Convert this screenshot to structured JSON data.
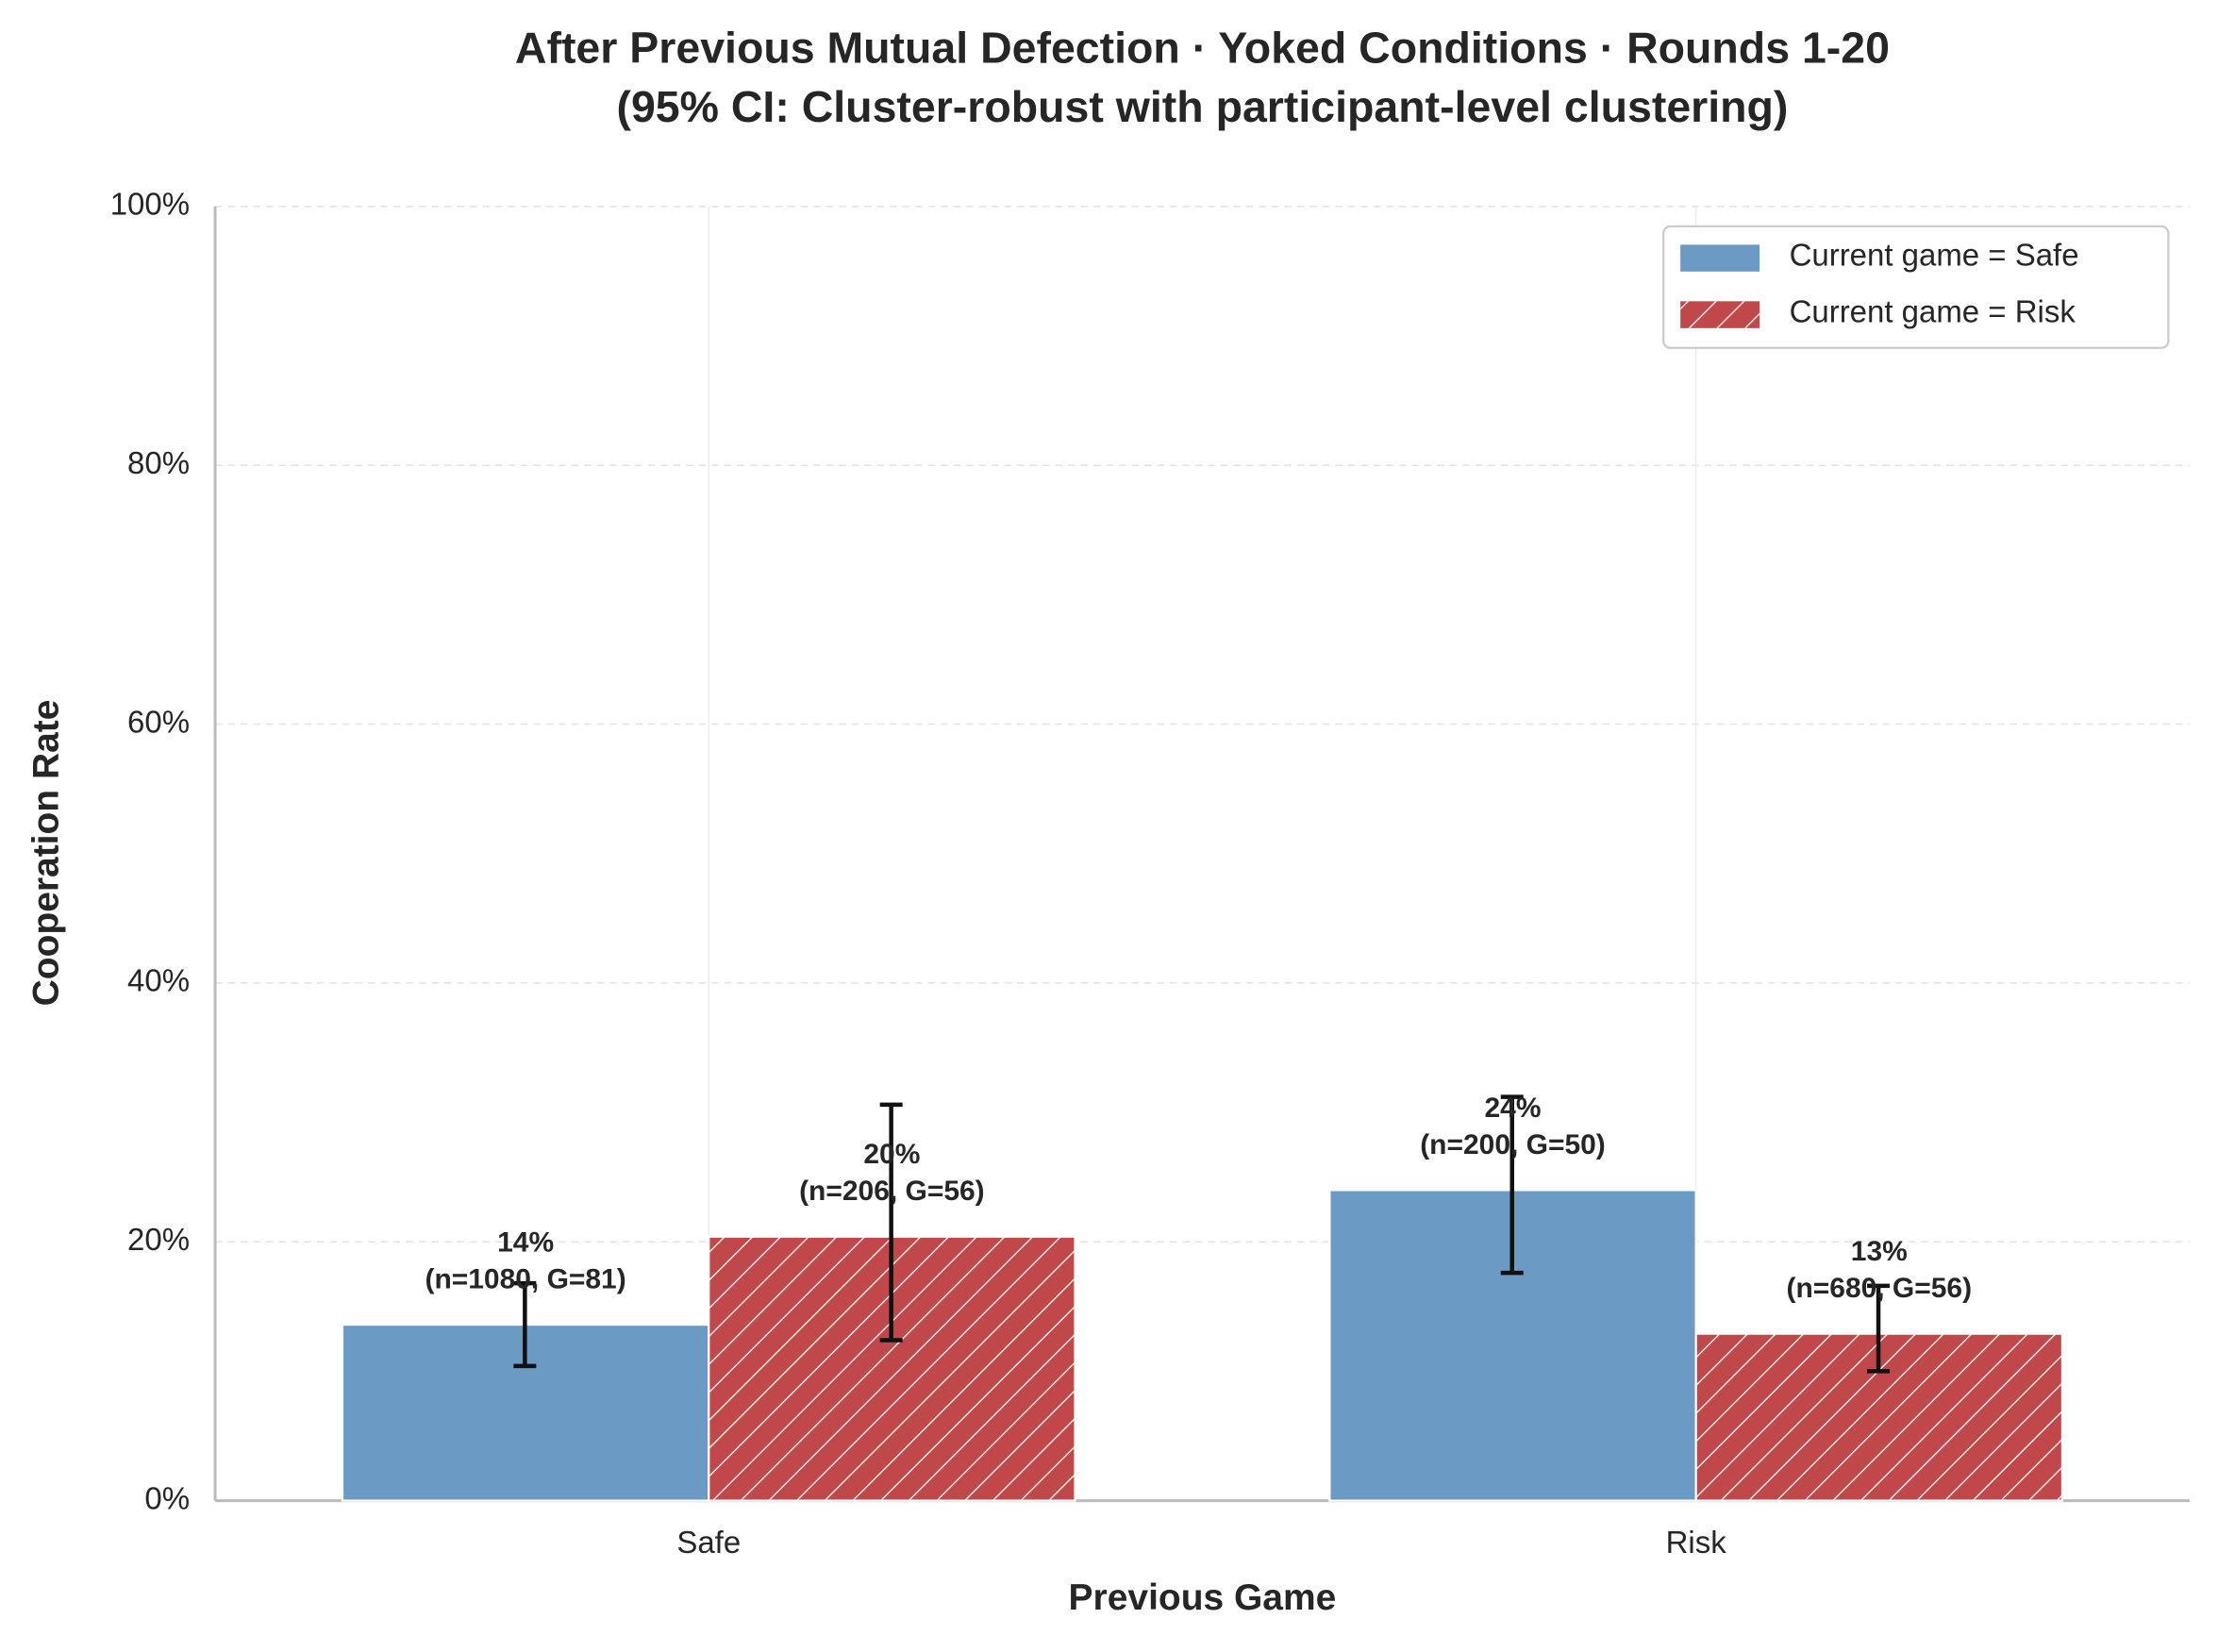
{
  "chart_data": {
    "type": "bar",
    "title": "After Previous Mutual Defection · Yoked Conditions · Rounds 1-20",
    "subtitle": "(95% CI: Cluster-robust with participant-level clustering)",
    "x_label": "Previous Game",
    "y_label": "Cooperation Rate",
    "categories": [
      "Safe",
      "Risk"
    ],
    "series": [
      {
        "name": "Current game = Safe",
        "color": "#6b9ac4",
        "hatch": false,
        "values": [
          13.6,
          24.0
        ],
        "value_labels": [
          "14%",
          "24%"
        ],
        "annotations": [
          "(n=1080, G=81)",
          "(n=200, G=50)"
        ],
        "ci_low": [
          10.4,
          17.6
        ],
        "ci_high": [
          16.8,
          31.2
        ]
      },
      {
        "name": "Current game = Risk",
        "color": "#c0484a",
        "hatch": true,
        "values": [
          20.4,
          12.9
        ],
        "value_labels": [
          "20%",
          "13%"
        ],
        "annotations": [
          "(n=206, G=56)",
          "(n=680, G=56)"
        ],
        "ci_low": [
          12.4,
          10.0
        ],
        "ci_high": [
          30.6,
          16.6
        ]
      }
    ],
    "ylim": [
      0,
      100
    ],
    "yticks": [
      {
        "value": 0,
        "label": "0%"
      },
      {
        "value": 20,
        "label": "20%"
      },
      {
        "value": 40,
        "label": "40%"
      },
      {
        "value": 60,
        "label": "60%"
      },
      {
        "value": 80,
        "label": "80%"
      },
      {
        "value": 100,
        "label": "100%"
      }
    ],
    "grid": true,
    "legend": "upper right"
  }
}
